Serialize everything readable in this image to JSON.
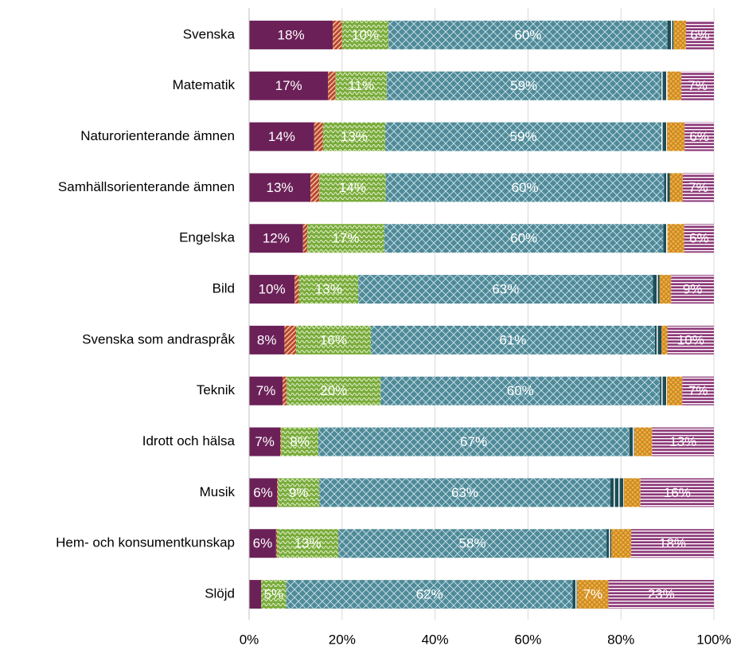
{
  "chart_data": {
    "type": "stacked_barh",
    "categories": [
      "Svenska",
      "Matematik",
      "Naturorienterande ämnen",
      "Samhällsorienterande ämnen",
      "Engelska",
      "Bild",
      "Svenska som andraspråk",
      "Teknik",
      "Idrott och hälsa",
      "Musik",
      "Hem- och konsumentkunskap",
      "Slöjd"
    ],
    "series": [
      {
        "color": "#6b2158",
        "values": [
          18,
          17,
          14,
          13.2,
          11.6,
          9.8,
          7.6,
          7.2,
          6.7,
          6.0,
          5.8,
          2.6
        ],
        "value_labels": [
          "18%",
          "17%",
          "14%",
          "13%",
          "12%",
          "10%",
          "8%",
          "7%",
          "7%",
          "6%",
          "6%",
          null
        ]
      },
      {
        "color": "#b8472d",
        "values": [
          2,
          1.6,
          1.9,
          1.9,
          0.9,
          0.9,
          2.5,
          0.9,
          0.2,
          0.2,
          0.2,
          0
        ]
      },
      {
        "color": "#7aac3c",
        "values": [
          10,
          11,
          13.4,
          14.3,
          16.6,
          12.8,
          16.1,
          20.2,
          8,
          8.9,
          13.2,
          5.4
        ],
        "value_labels": [
          "10%",
          "11%",
          "13%",
          "14%",
          "17%",
          "13%",
          "16%",
          "20%",
          "8%",
          "9%",
          "13%",
          "5%"
        ]
      },
      {
        "color": "#4f8a99",
        "values": [
          60,
          59,
          59.4,
          59.9,
          60,
          63.4,
          61.1,
          60.1,
          66.8,
          62.6,
          57.7,
          61.6
        ],
        "value_labels": [
          "60%",
          "59%",
          "59%",
          "60%",
          "60%",
          "63%",
          "61%",
          "60%",
          "67%",
          "63%",
          "58%",
          "62%"
        ]
      },
      {
        "color": "#1d4d58",
        "values": [
          1.3,
          1.4,
          1.2,
          1.2,
          0.9,
          1.4,
          1.4,
          1.5,
          1.2,
          2.9,
          1,
          1
        ]
      },
      {
        "color": "#eeb046",
        "values": [
          2.7,
          3,
          3.8,
          2.8,
          3.6,
          2.5,
          1.3,
          3.3,
          3.8,
          3.6,
          4.3,
          6.7
        ],
        "value_labels": [
          null,
          null,
          null,
          null,
          null,
          null,
          null,
          null,
          null,
          null,
          null,
          "7%"
        ]
      },
      {
        "color": "#8c3878",
        "values": [
          6,
          7,
          6.3,
          6.7,
          6.4,
          9.2,
          10,
          6.8,
          13.3,
          15.8,
          17.8,
          22.7
        ],
        "value_labels": [
          "6%",
          "7%",
          "6%",
          "7%",
          "6%",
          "9%",
          "10%",
          "7%",
          "13%",
          "16%",
          "18%",
          "23%"
        ]
      }
    ],
    "xlim": [
      0,
      100
    ],
    "xticks": [
      {
        "value": 0,
        "label": "0%"
      },
      {
        "value": 20,
        "label": "20%"
      },
      {
        "value": 40,
        "label": "40%"
      },
      {
        "value": 60,
        "label": "60%"
      },
      {
        "value": 80,
        "label": "80%"
      },
      {
        "value": 100,
        "label": "100%"
      }
    ],
    "grid": true
  }
}
